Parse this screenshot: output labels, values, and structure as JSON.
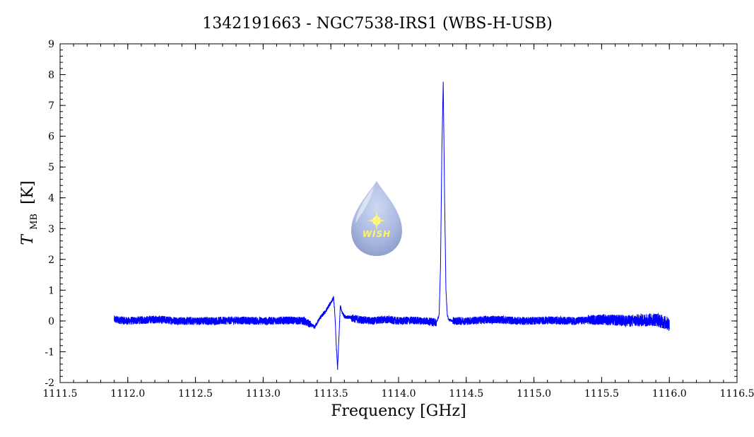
{
  "chart_data": {
    "type": "line",
    "title": "1342191663 - NGC7538-IRS1 (WBS-H-USB)",
    "xlabel": "Frequency [GHz]",
    "ylabel_main": "T",
    "ylabel_sub": "MB",
    "ylabel_unit": "[K]",
    "xlim": [
      1111.5,
      1116.5
    ],
    "ylim": [
      -2,
      9
    ],
    "xticks": [
      "1111.5",
      "1112.0",
      "1112.5",
      "1113.0",
      "1113.5",
      "1114.0",
      "1114.5",
      "1115.0",
      "1115.5",
      "1116.0",
      "1116.5"
    ],
    "yticks": [
      "-2",
      "-1",
      "0",
      "1",
      "2",
      "3",
      "4",
      "5",
      "6",
      "7",
      "8",
      "9"
    ],
    "grid": false,
    "series": [
      {
        "color": "#0000ff",
        "x": [
          1111.9,
          1112.0,
          1112.2,
          1112.4,
          1112.6,
          1112.8,
          1113.0,
          1113.2,
          1113.3,
          1113.38,
          1113.42,
          1113.46,
          1113.5,
          1113.52,
          1113.53,
          1113.54,
          1113.55,
          1113.56,
          1113.57,
          1113.58,
          1113.6,
          1113.65,
          1113.7,
          1113.8,
          1113.9,
          1114.0,
          1114.1,
          1114.2,
          1114.28,
          1114.3,
          1114.31,
          1114.32,
          1114.33,
          1114.34,
          1114.35,
          1114.36,
          1114.37,
          1114.4,
          1114.5,
          1114.7,
          1114.9,
          1115.1,
          1115.3,
          1115.5,
          1115.7,
          1115.9,
          1116.0
        ],
        "y": [
          0.05,
          0.0,
          0.05,
          0.0,
          0.0,
          0.02,
          0.0,
          0.02,
          0.0,
          -0.2,
          0.1,
          0.3,
          0.6,
          0.75,
          0.2,
          -0.8,
          -1.55,
          -0.5,
          0.5,
          0.3,
          0.15,
          0.1,
          0.05,
          0.0,
          0.05,
          0.0,
          0.02,
          0.0,
          -0.05,
          0.2,
          1.8,
          5.6,
          7.75,
          4.0,
          1.0,
          0.2,
          0.05,
          0.0,
          0.0,
          0.05,
          0.0,
          0.02,
          0.0,
          0.05,
          0.0,
          0.05,
          -0.1
        ]
      }
    ]
  },
  "logo": {
    "text": "WISH",
    "color": "#8fa3d4"
  }
}
